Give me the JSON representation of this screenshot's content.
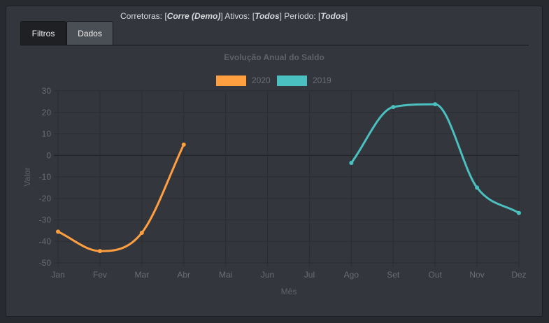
{
  "header": {
    "corretoras_label": "Corretoras: [",
    "corretoras_value": "Corre (Demo)",
    "ativos_label": "] Ativos: [",
    "ativos_value": "Todos",
    "periodo_label": "] Período: [",
    "periodo_value": "Todos",
    "close_bracket": "]"
  },
  "tabs": [
    {
      "label": "Filtros",
      "active": true
    },
    {
      "label": "Dados",
      "active": false
    }
  ],
  "chart_data": {
    "type": "line",
    "title": "Evolução Anual do Saldo",
    "xlabel": "Mês",
    "ylabel": "Valor",
    "categories": [
      "Jan",
      "Fev",
      "Mar",
      "Abr",
      "Mai",
      "Jun",
      "Jul",
      "Ago",
      "Set",
      "Out",
      "Nov",
      "Dez"
    ],
    "ylim": [
      -50,
      30
    ],
    "yticks": [
      30,
      20,
      10,
      0,
      -10,
      -20,
      -30,
      -40,
      -50
    ],
    "grid": true,
    "legend": "top-center",
    "series": [
      {
        "name": "2020",
        "color": "#ff9f40",
        "values": [
          -35.5,
          -44.5,
          -36,
          5,
          null,
          null,
          null,
          null,
          null,
          null,
          null,
          null
        ]
      },
      {
        "name": "2019",
        "color": "#4bc0c0",
        "values": [
          null,
          null,
          null,
          null,
          null,
          null,
          null,
          -3.5,
          22.5,
          23.8,
          -15,
          -26.8
        ]
      }
    ]
  }
}
